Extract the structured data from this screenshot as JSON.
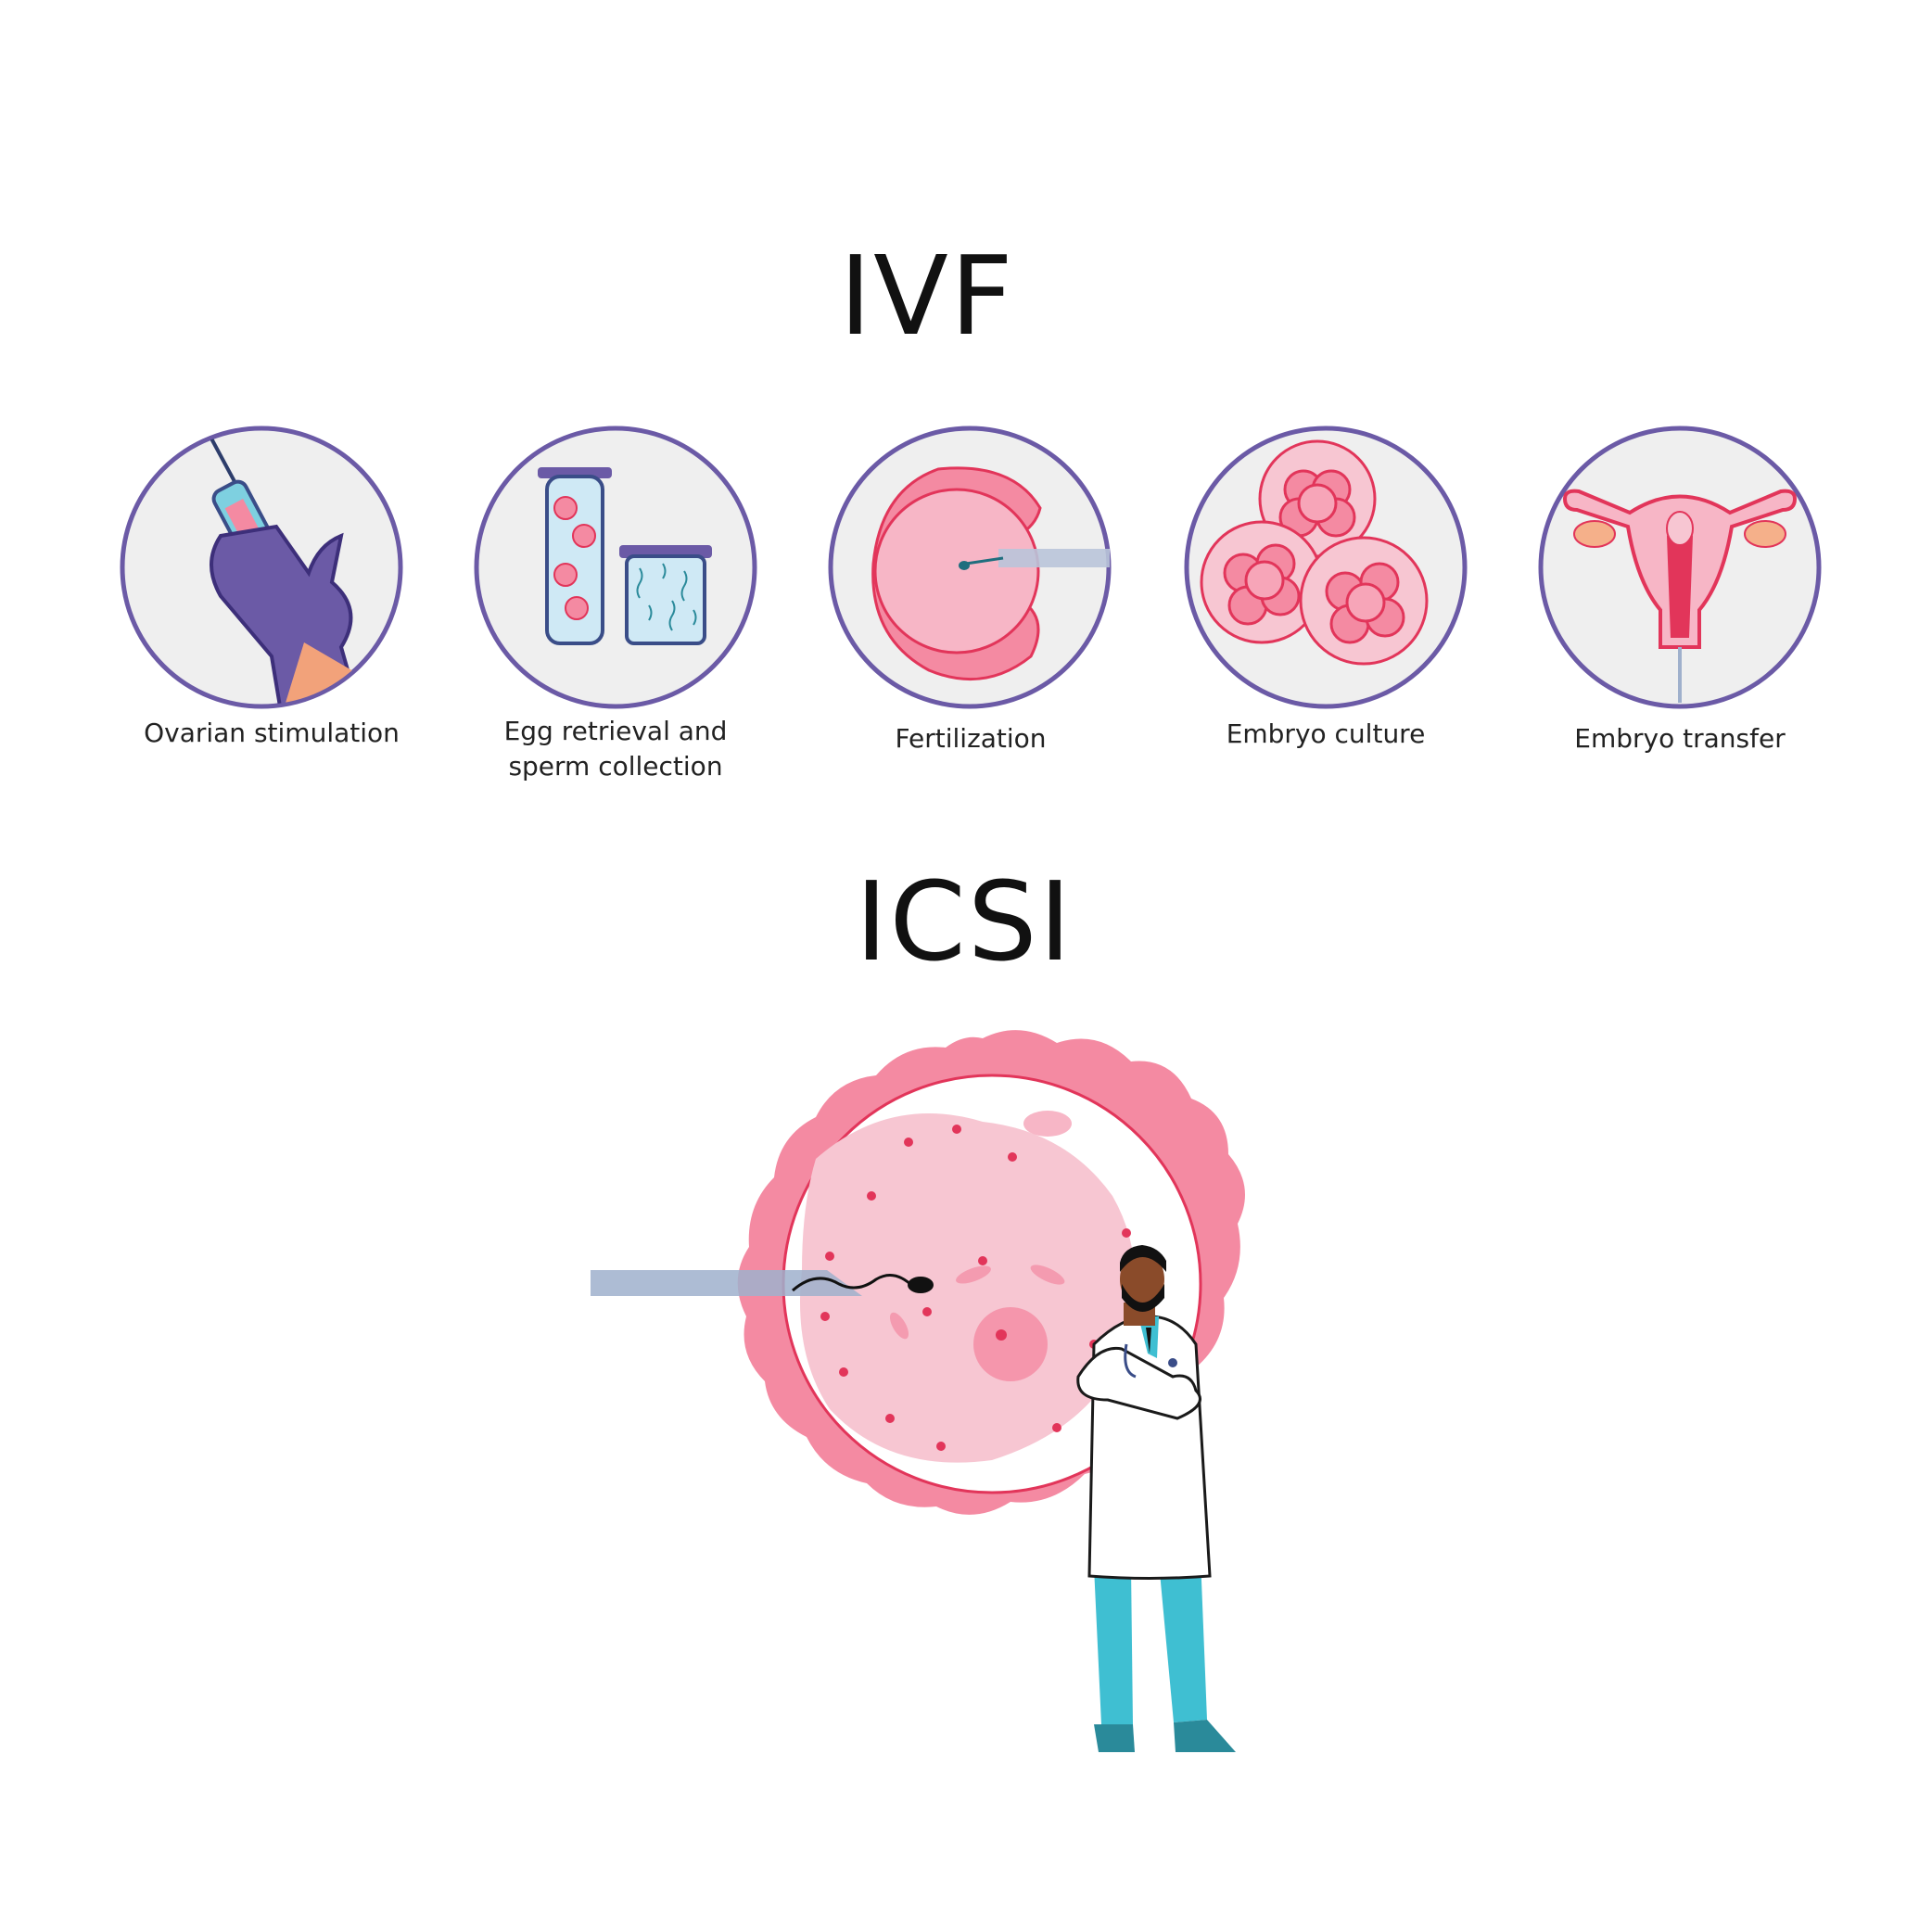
{
  "titles": {
    "ivf": "IVF",
    "icsi": "ICSI"
  },
  "steps": [
    {
      "label": "Ovarian stimulation",
      "icon": "syringe-glove-icon"
    },
    {
      "label": "Egg retrieval and sperm collection",
      "line1": "Egg retrieval and",
      "line2": "sperm collection",
      "icon": "test-tubes-icon"
    },
    {
      "label": "Fertilization",
      "icon": "egg-injection-icon"
    },
    {
      "label": "Embryo culture",
      "icon": "embryo-cells-icon"
    },
    {
      "label": "Embryo transfer",
      "icon": "uterus-icon"
    }
  ],
  "colors": {
    "ring": "#6b5aa6",
    "circle_bg": "#efefef",
    "pink": "#f48aa2",
    "pink_light": "#f7b6c6",
    "red": "#e2355a",
    "teal": "#3fbfd2",
    "pipette": "#9fb0cc"
  }
}
